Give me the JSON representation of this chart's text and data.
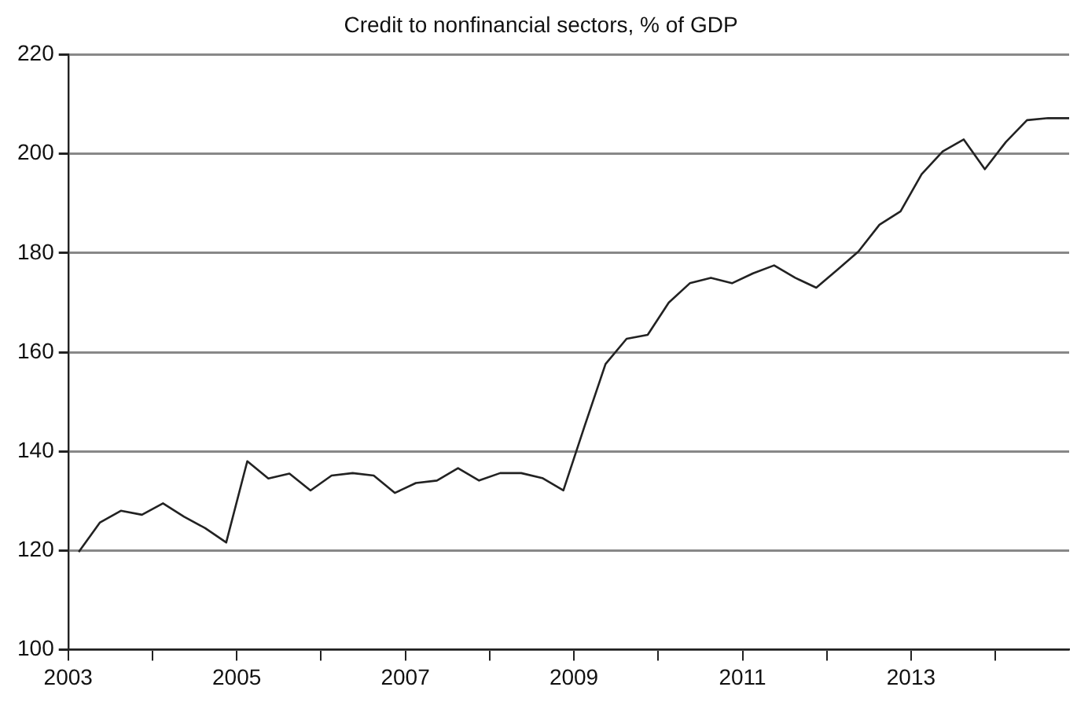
{
  "chart_data": {
    "type": "line",
    "title": "Credit to nonfinancial sectors, % of GDP",
    "x": [
      2003.125,
      2003.375,
      2003.625,
      2003.875,
      2004.125,
      2004.375,
      2004.625,
      2004.875,
      2005.125,
      2005.375,
      2005.625,
      2005.875,
      2006.125,
      2006.375,
      2006.625,
      2006.875,
      2007.125,
      2007.375,
      2007.625,
      2007.875,
      2008.125,
      2008.375,
      2008.625,
      2008.875,
      2009.125,
      2009.375,
      2009.625,
      2009.875,
      2010.125,
      2010.375,
      2010.625,
      2010.875,
      2011.125,
      2011.375,
      2011.625,
      2011.875,
      2012.125,
      2012.375,
      2012.625,
      2012.875,
      2013.125,
      2013.375,
      2013.625,
      2013.875,
      2014.125,
      2014.375,
      2014.625,
      2014.875
    ],
    "series": [
      {
        "color": "#222222",
        "values": [
          119.7,
          125.6,
          128.0,
          127.2,
          129.5,
          126.8,
          124.5,
          121.6,
          138.0,
          134.5,
          135.5,
          132.1,
          135.1,
          135.6,
          135.1,
          131.6,
          133.6,
          134.1,
          136.6,
          134.1,
          135.6,
          135.6,
          134.6,
          132.1,
          145.0,
          157.6,
          162.7,
          163.5,
          170.0,
          173.9,
          175.0,
          173.9,
          175.9,
          177.5,
          175.0,
          173.0,
          176.6,
          180.3,
          185.7,
          188.4,
          195.9,
          200.5,
          202.9,
          196.9,
          202.4,
          206.8,
          207.2,
          207.2
        ]
      }
    ],
    "xlim": [
      2003,
      2014.875
    ],
    "xticks": [
      2003,
      {
        "value": 2004,
        "label": null
      },
      2005,
      {
        "value": 2006,
        "label": null
      },
      2007,
      {
        "value": 2008,
        "label": null
      },
      2009,
      {
        "value": 2010,
        "label": null
      },
      2011,
      {
        "value": 2012,
        "label": null
      },
      2013,
      {
        "value": 2014,
        "label": null
      }
    ],
    "ylim": [
      100,
      220
    ],
    "yticks": [
      100,
      120,
      140,
      160,
      180,
      200,
      220
    ],
    "grid": "y",
    "legend": false,
    "marker": "none",
    "line_style": "solid"
  }
}
